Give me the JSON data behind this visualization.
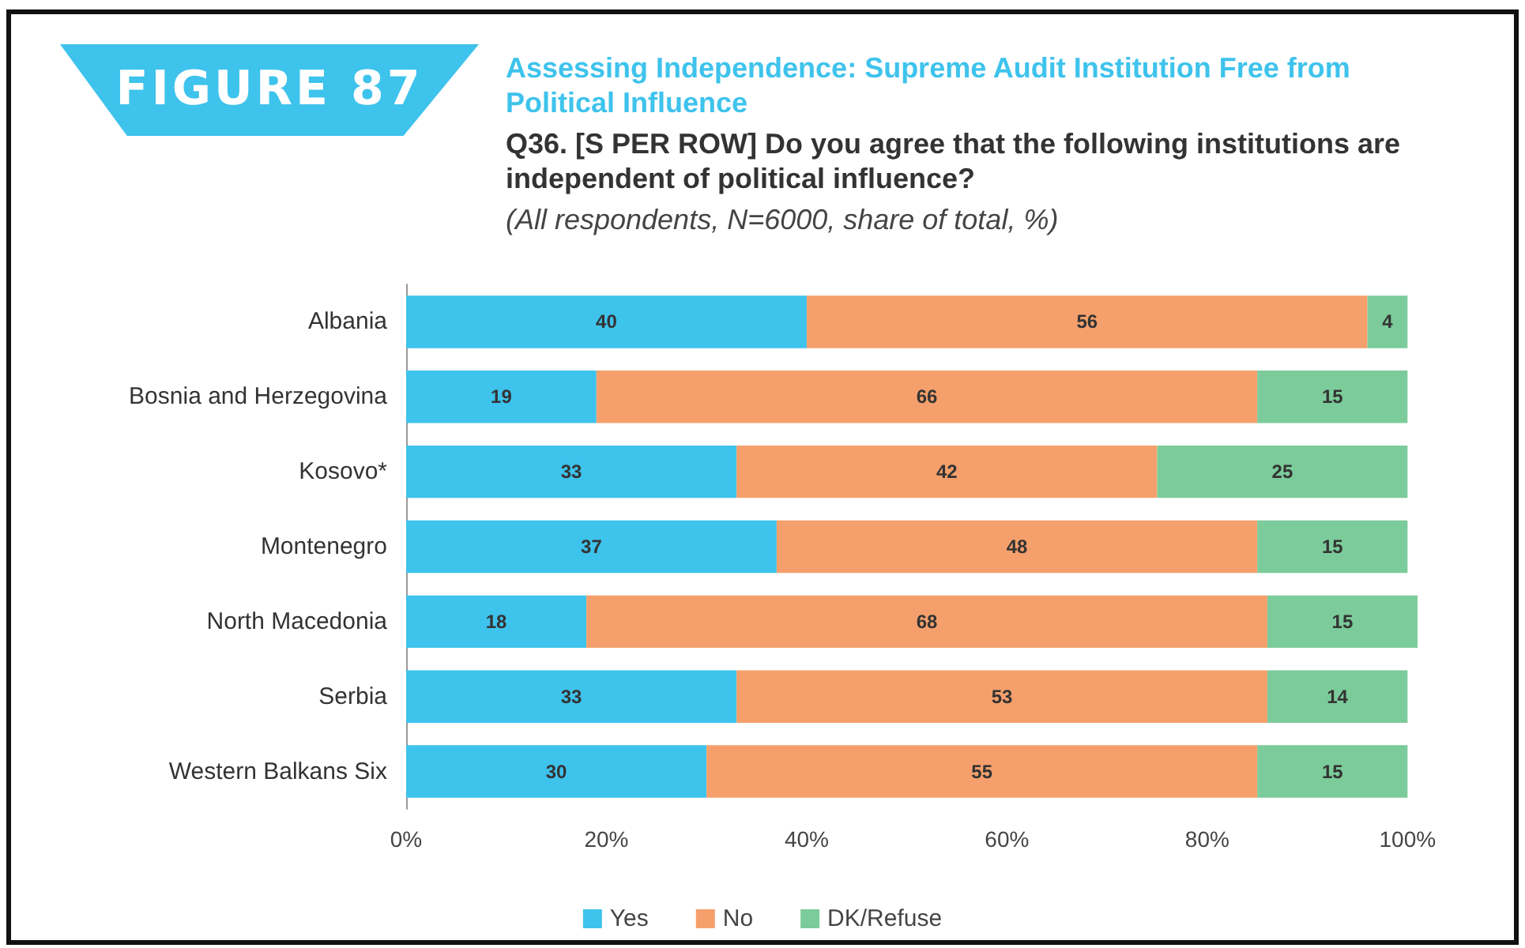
{
  "chart_data": {
    "type": "bar",
    "orientation": "horizontal",
    "stacked": true,
    "title": "Assessing Independence: Supreme Audit Institution Free from Political Influence",
    "subtitle": "Q36. [S PER ROW] Do you agree that the following institutions are independent of political influence?",
    "annotations": [
      "FIGURE 87",
      "(All respondents, N=6000, share of total, %)"
    ],
    "categories": [
      "Albania",
      "Bosnia and Herzegovina",
      "Kosovo*",
      "Montenegro",
      "North Macedonia",
      "Serbia",
      "Western Balkans Six"
    ],
    "series": [
      {
        "name": "Yes",
        "color": "#3ec3ec",
        "values": [
          40,
          19,
          33,
          37,
          18,
          33,
          30
        ]
      },
      {
        "name": "No",
        "color": "#f5a06c",
        "values": [
          56,
          66,
          42,
          48,
          68,
          53,
          55
        ]
      },
      {
        "name": "DK/Refuse",
        "color": "#7ccb9a",
        "values": [
          4,
          15,
          25,
          15,
          15,
          14,
          15
        ]
      }
    ],
    "xlim": [
      0,
      101
    ],
    "xticks": [
      {
        "value": 0,
        "label": "0%"
      },
      {
        "value": 20,
        "label": "20%"
      },
      {
        "value": 40,
        "label": "40%"
      },
      {
        "value": 60,
        "label": "60%"
      },
      {
        "value": 80,
        "label": "80%"
      },
      {
        "value": 100,
        "label": "100%"
      }
    ],
    "data_labels": true,
    "grid": false,
    "legend": "bottom"
  }
}
